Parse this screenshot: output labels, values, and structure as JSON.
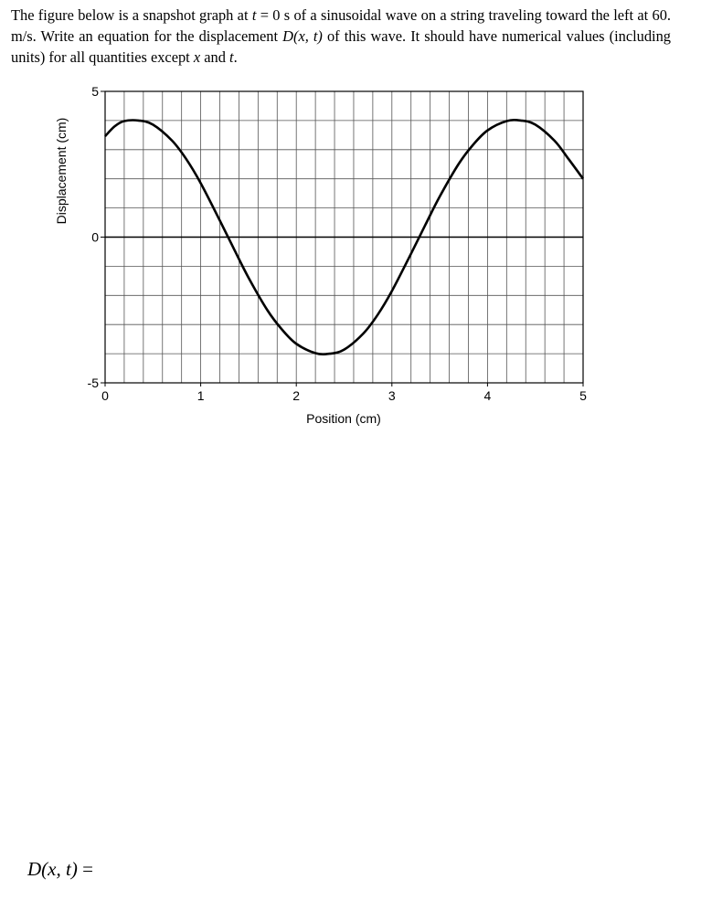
{
  "problem": {
    "part1": "The figure below is a snapshot graph at",
    "t_var": "t",
    "time_eq": " = 0 s",
    "part2": "of a sinusoidal wave on a string traveling toward the left at 60. m/s. Write an equation for the displacement",
    "func_name": "D",
    "func_args": "(x, t)",
    "part3": "of this wave. It should have numerical values (including units) for all quantities except",
    "x_var": "x",
    "and_word": "and",
    "t_var2": "t",
    "period": "."
  },
  "chart_data": {
    "type": "line",
    "title": "",
    "xlabel": "Position (cm)",
    "ylabel": "Displacement (cm)",
    "xlim": [
      0,
      5
    ],
    "ylim": [
      -5,
      5
    ],
    "x_ticks": [
      "0",
      "1",
      "2",
      "3",
      "4",
      "5"
    ],
    "y_ticks": [
      "5",
      "0",
      "-5"
    ],
    "grid": true,
    "series": [
      {
        "x": [
          0,
          0.1,
          0.2,
          0.35,
          0.5,
          0.7,
          0.85,
          1.0,
          1.2,
          1.35,
          1.5,
          1.7,
          1.85,
          2.0,
          2.2,
          2.35,
          2.5,
          2.7,
          2.85,
          3.0,
          3.2,
          3.35,
          3.5,
          3.7,
          3.85,
          4.0,
          4.2,
          4.35,
          4.5,
          4.7,
          4.85,
          5.0
        ],
        "y": [
          3.46,
          3.8,
          3.98,
          4.0,
          3.86,
          3.31,
          2.67,
          1.85,
          0.57,
          -0.42,
          -1.39,
          -2.52,
          -3.17,
          -3.66,
          -3.98,
          -4.0,
          -3.86,
          -3.31,
          -2.67,
          -1.85,
          -0.57,
          0.42,
          1.39,
          2.52,
          3.17,
          3.66,
          3.98,
          4.0,
          3.86,
          3.31,
          2.67,
          2.0
        ]
      }
    ]
  },
  "answer": {
    "func_name": "D",
    "args": "(x, t)",
    "equals": " ="
  }
}
